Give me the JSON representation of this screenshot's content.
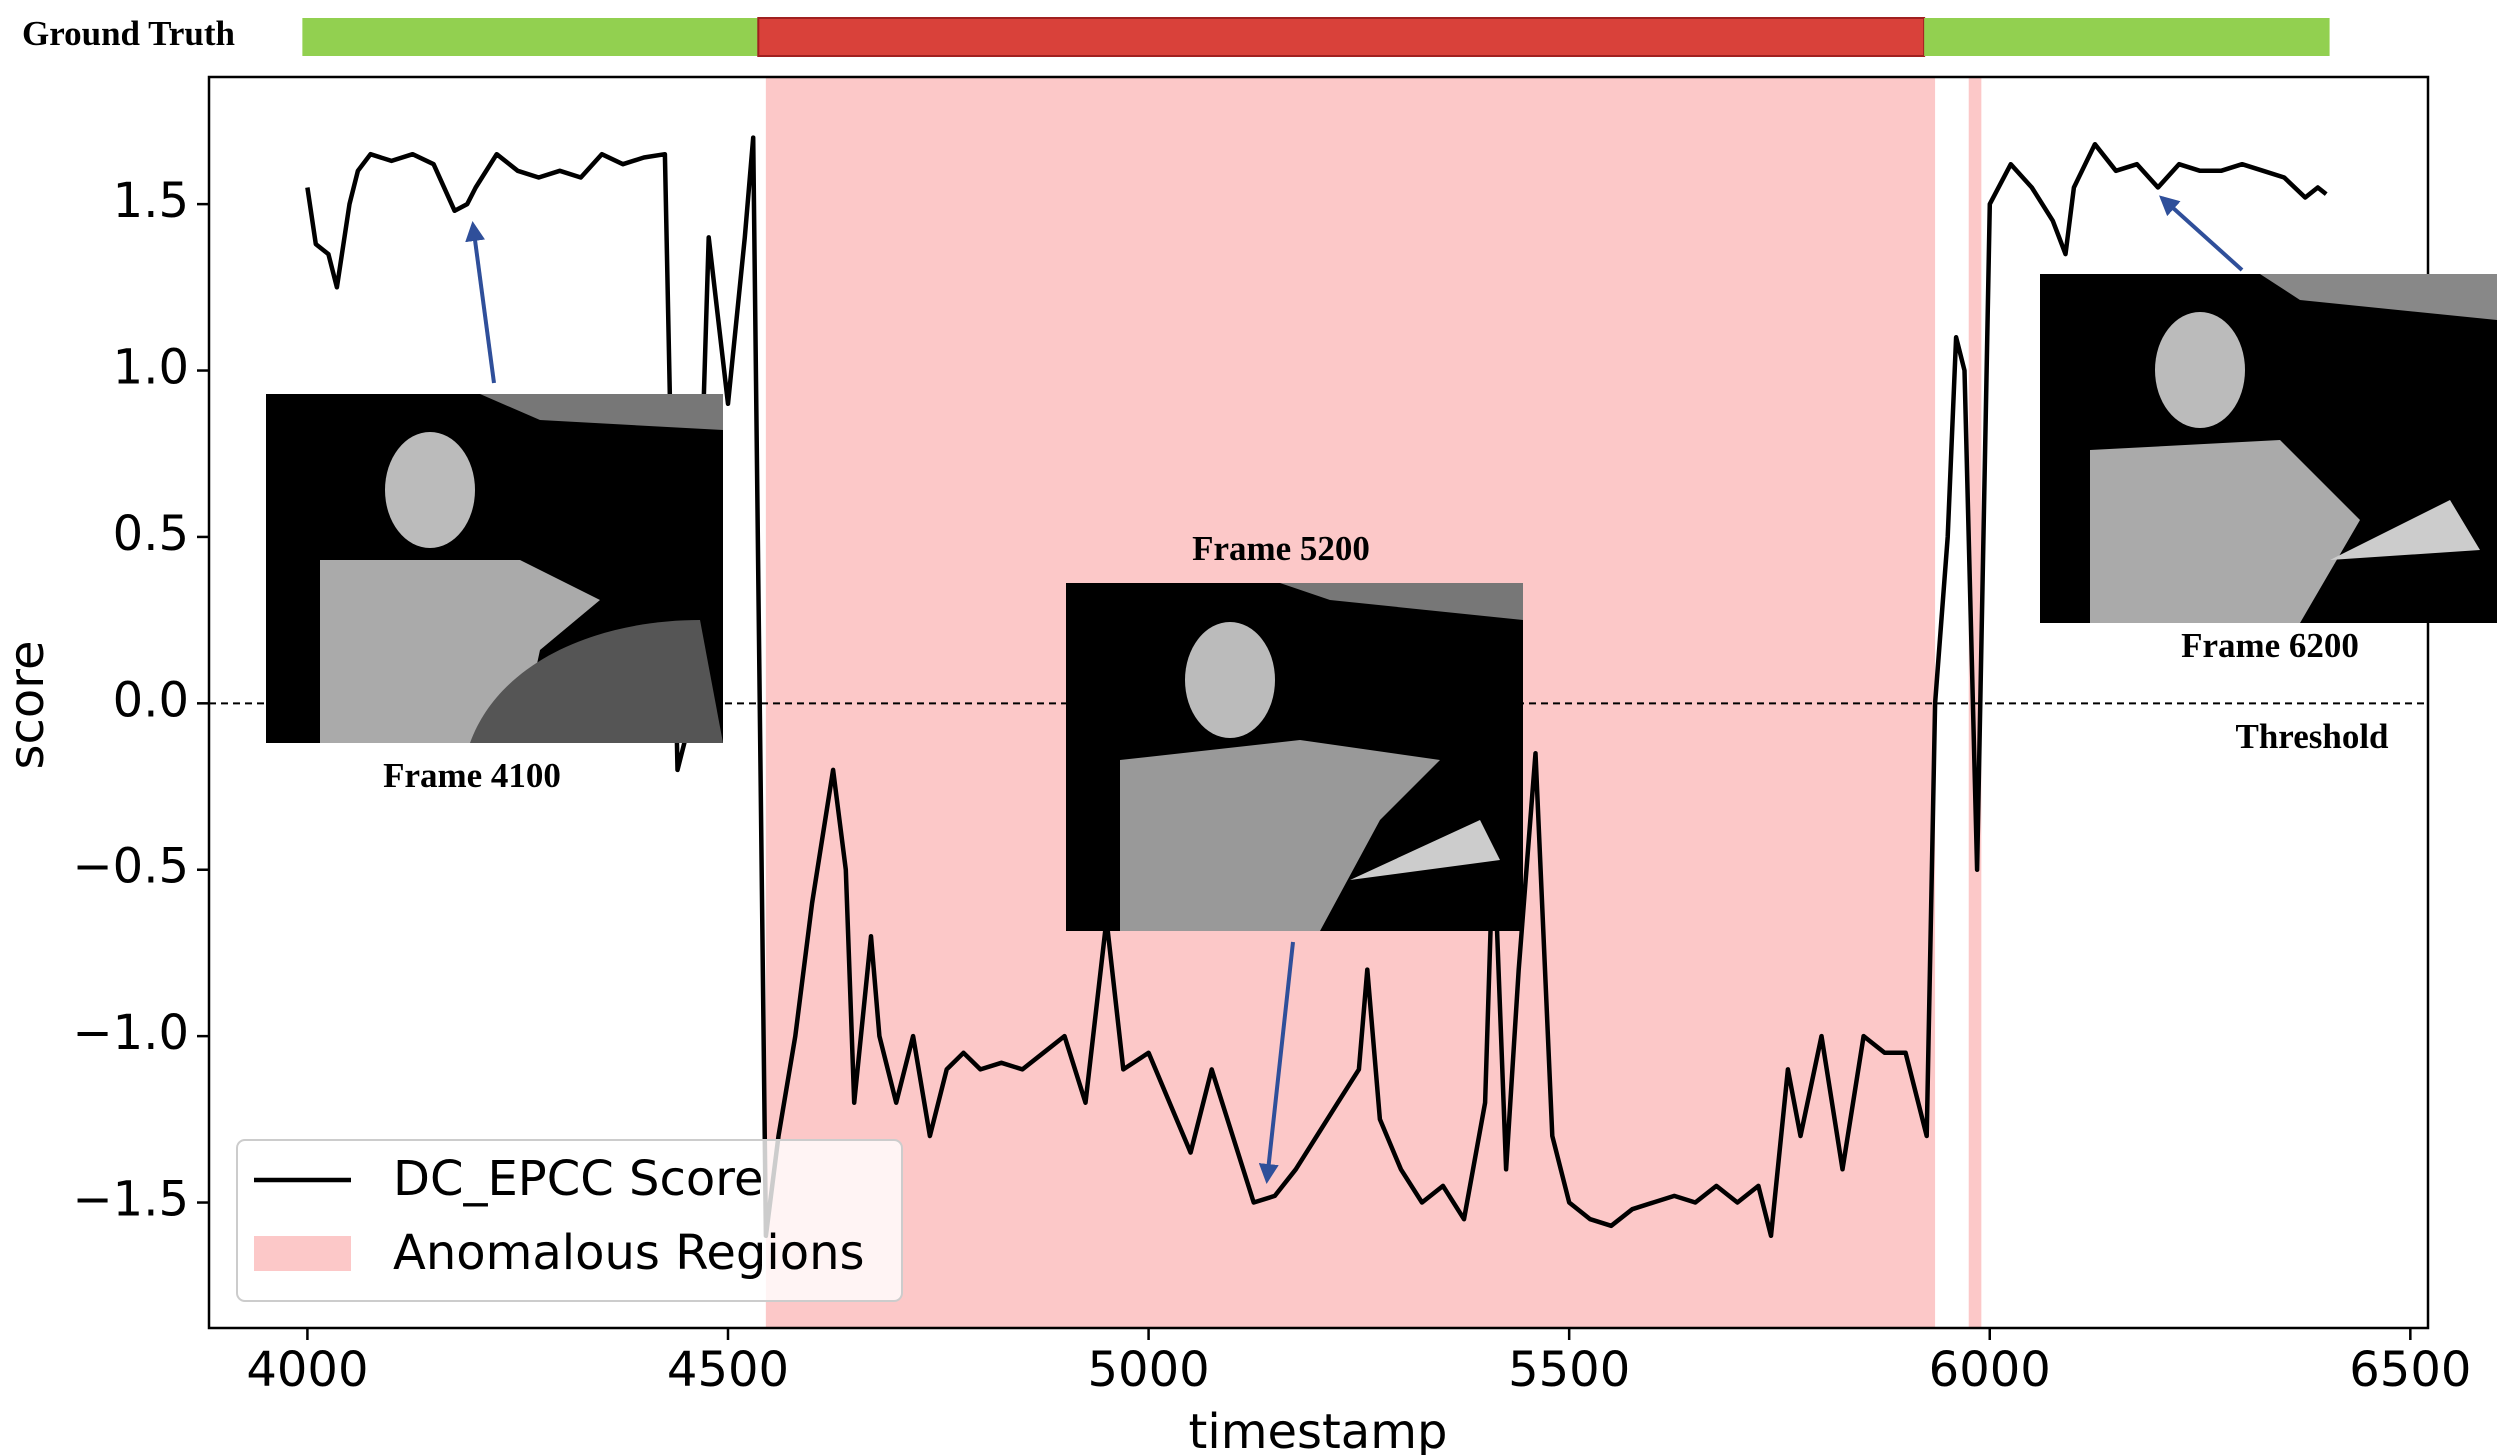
{
  "chart_data": {
    "type": "line",
    "xlabel": "timestamp",
    "ylabel": "score",
    "x": [
      4000,
      4010,
      4025,
      4035,
      4050,
      4060,
      4075,
      4100,
      4125,
      4150,
      4175,
      4190,
      4200,
      4225,
      4250,
      4275,
      4300,
      4325,
      4350,
      4375,
      4400,
      4425,
      4440,
      4460,
      4477,
      4500,
      4520,
      4530,
      4545,
      4560,
      4580,
      4600,
      4625,
      4640,
      4650,
      4670,
      4680,
      4700,
      4720,
      4740,
      4760,
      4780,
      4800,
      4825,
      4850,
      4875,
      4900,
      4925,
      4950,
      4970,
      5000,
      5025,
      5050,
      5075,
      5100,
      5125,
      5150,
      5175,
      5200,
      5225,
      5250,
      5260,
      5275,
      5300,
      5325,
      5350,
      5375,
      5400,
      5410,
      5425,
      5440,
      5460,
      5480,
      5500,
      5525,
      5550,
      5575,
      5600,
      5625,
      5650,
      5675,
      5700,
      5725,
      5740,
      5760,
      5775,
      5800,
      5825,
      5850,
      5875,
      5900,
      5925,
      5935,
      5950,
      5960,
      5970,
      5985,
      6000,
      6025,
      6050,
      6075,
      6090,
      6100,
      6125,
      6150,
      6175,
      6200,
      6225,
      6250,
      6275,
      6300,
      6325,
      6350,
      6375,
      6390,
      6400
    ],
    "series": [
      {
        "name": "DC_EPCC Score",
        "color": "#000000",
        "values": [
          1.55,
          1.38,
          1.35,
          1.25,
          1.5,
          1.6,
          1.65,
          1.63,
          1.65,
          1.62,
          1.48,
          1.5,
          1.55,
          1.65,
          1.6,
          1.58,
          1.6,
          1.58,
          1.65,
          1.62,
          1.64,
          1.65,
          -0.2,
          0.0,
          1.4,
          0.9,
          1.4,
          1.7,
          -1.6,
          -1.3,
          -1.0,
          -0.6,
          -0.2,
          -0.5,
          -1.2,
          -0.7,
          -1.0,
          -1.2,
          -1.0,
          -1.3,
          -1.1,
          -1.05,
          -1.1,
          -1.08,
          -1.1,
          -1.05,
          -1.0,
          -1.2,
          -0.65,
          -1.1,
          -1.05,
          -1.2,
          -1.35,
          -1.1,
          -1.3,
          -1.5,
          -1.48,
          -1.4,
          -1.3,
          -1.2,
          -1.1,
          -0.8,
          -1.25,
          -1.4,
          -1.5,
          -1.45,
          -1.55,
          -1.2,
          -0.4,
          -1.4,
          -0.8,
          -0.15,
          -1.3,
          -1.5,
          -1.55,
          -1.57,
          -1.52,
          -1.5,
          -1.48,
          -1.5,
          -1.45,
          -1.5,
          -1.45,
          -1.6,
          -1.1,
          -1.3,
          -1.0,
          -1.4,
          -1.0,
          -1.05,
          -1.05,
          -1.3,
          0.0,
          0.5,
          1.1,
          1.0,
          -0.5,
          1.5,
          1.62,
          1.55,
          1.45,
          1.35,
          1.55,
          1.68,
          1.6,
          1.62,
          1.55,
          1.62,
          1.6,
          1.6,
          1.62,
          1.6,
          1.58,
          1.52,
          1.55,
          1.53
        ]
      }
    ],
    "regions": {
      "name": "Anomalous Regions",
      "color": "#fcc8c8",
      "spans": [
        [
          4545,
          5935
        ],
        [
          5975,
          5990
        ]
      ]
    },
    "threshold": {
      "value": 0,
      "label": "Threshold"
    },
    "ground_truth": {
      "label": "Ground Truth",
      "segments": [
        {
          "start": 3994,
          "end": 4536,
          "color": "#92d050"
        },
        {
          "start": 4536,
          "end": 5922,
          "color": "#d9413a"
        },
        {
          "start": 5922,
          "end": 6404,
          "color": "#92d050"
        }
      ]
    },
    "annotations": [
      "Frame 4100",
      "Frame 5200",
      "Frame 6200"
    ],
    "xlim": [
      3883,
      6521
    ],
    "ylim": [
      -1.877,
      1.882
    ],
    "xticks": [
      4000,
      4500,
      5000,
      5500,
      6000,
      6500
    ],
    "yticks": [
      {
        "value": -1.5,
        "label": "−1.5"
      },
      {
        "value": -1.0,
        "label": "−1.0"
      },
      {
        "value": -0.5,
        "label": "−0.5"
      },
      {
        "value": 0,
        "label": "0.0"
      },
      0.5,
      {
        "value": 1.0,
        "label": "1.0"
      },
      1.5
    ],
    "legend": "lower left"
  }
}
